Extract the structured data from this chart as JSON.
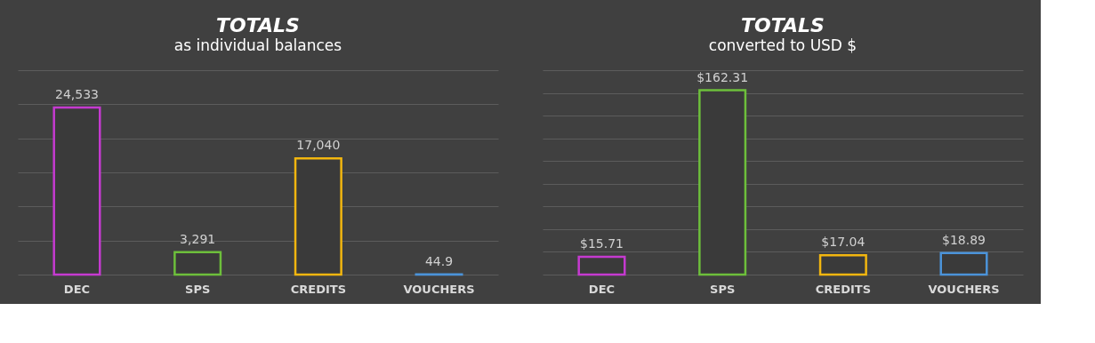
{
  "chart_data": [
    {
      "type": "bar",
      "title": "TOTALS",
      "subtitle": "as individual balances",
      "categories": [
        "DEC",
        "SPS",
        "CREDITS",
        "VOUCHERS"
      ],
      "values": [
        24533,
        3291,
        17040,
        44.9
      ],
      "colors": [
        "#c53ad0",
        "#6dbf3b",
        "#f2b60f",
        "#4b93d9"
      ],
      "value_labels": [
        "24,533",
        "3,291",
        "17,040",
        "44.9"
      ],
      "ylim": [
        0,
        30000
      ],
      "yticks": [
        0,
        5000,
        10000,
        15000,
        20000,
        25000,
        30000
      ],
      "grid": "y",
      "tick_labels": "x",
      "legend": false
    },
    {
      "type": "bar",
      "title": "TOTALS",
      "subtitle": "converted to USD $",
      "categories": [
        "DEC",
        "SPS",
        "CREDITS",
        "VOUCHERS"
      ],
      "values": [
        15.71,
        162.31,
        17.04,
        18.89
      ],
      "colors": [
        "#c53ad0",
        "#6dbf3b",
        "#f2b60f",
        "#4b93d9"
      ],
      "value_labels": [
        "$15.71",
        "$162.31",
        "$17.04",
        "$18.89"
      ],
      "ylim": [
        0,
        180
      ],
      "yticks": [
        0,
        20,
        40,
        60,
        80,
        100,
        120,
        140,
        160,
        180
      ],
      "grid": "y",
      "tick_labels": "x",
      "legend": false
    }
  ]
}
